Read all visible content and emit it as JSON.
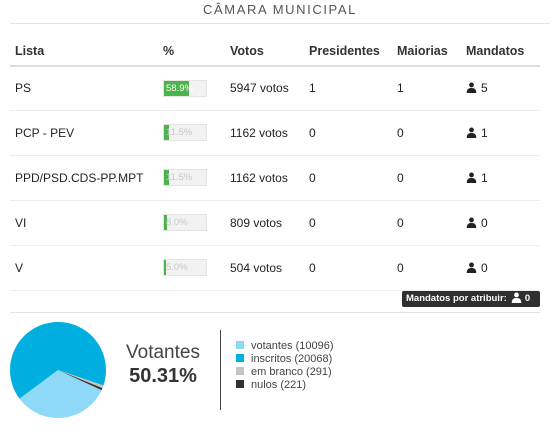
{
  "title": "CÂMARA MUNICIPAL",
  "table": {
    "headers": {
      "lista": "Lista",
      "pct": "%",
      "votos": "Votos",
      "presidentes": "Presidentes",
      "maiorias": "Maiorias",
      "mandatos": "Mandatos"
    },
    "rows": [
      {
        "lista": "PS",
        "pct": 58.9,
        "pct_text": "58.9%",
        "votos": "5947 votos",
        "presidentes": "1",
        "maiorias": "1",
        "mandatos": "5"
      },
      {
        "lista": "PCP - PEV",
        "pct": 11.5,
        "pct_text": "11.5%",
        "votos": "1162 votos",
        "presidentes": "0",
        "maiorias": "0",
        "mandatos": "1"
      },
      {
        "lista": "PPD/PSD.CDS-PP.MPT",
        "pct": 11.5,
        "pct_text": "11.5%",
        "votos": "1162 votos",
        "presidentes": "0",
        "maiorias": "0",
        "mandatos": "1"
      },
      {
        "lista": "VI",
        "pct": 8.0,
        "pct_text": "8.0%",
        "votos": "809 votos",
        "presidentes": "0",
        "maiorias": "0",
        "mandatos": "0"
      },
      {
        "lista": "V",
        "pct": 5.0,
        "pct_text": "5.0%",
        "votos": "504 votos",
        "presidentes": "0",
        "maiorias": "0",
        "mandatos": "0"
      }
    ]
  },
  "mandatos_por_atribuir": {
    "label": "Mandatos por atribuir:",
    "value": "0"
  },
  "summary": {
    "label": "Votantes",
    "value": "50.31%"
  },
  "chart_data": {
    "type": "pie",
    "slices": [
      {
        "name": "votantes",
        "value": 10096,
        "color": "#8ed8f8"
      },
      {
        "name": "inscritos",
        "value": 20068,
        "color": "#00aee0"
      },
      {
        "name": "em branco",
        "value": 291,
        "color": "#c4c4c4"
      },
      {
        "name": "nulos",
        "value": 221,
        "color": "#333333"
      }
    ]
  },
  "legend": [
    {
      "text": "votantes (10096)",
      "color": "#8ed8f8"
    },
    {
      "text": "inscritos (20068)",
      "color": "#00aee0"
    },
    {
      "text": "em branco (291)",
      "color": "#c4c4c4"
    },
    {
      "text": "nulos (221)",
      "color": "#333333"
    }
  ],
  "icons": {
    "mandatos": "person-icon"
  }
}
